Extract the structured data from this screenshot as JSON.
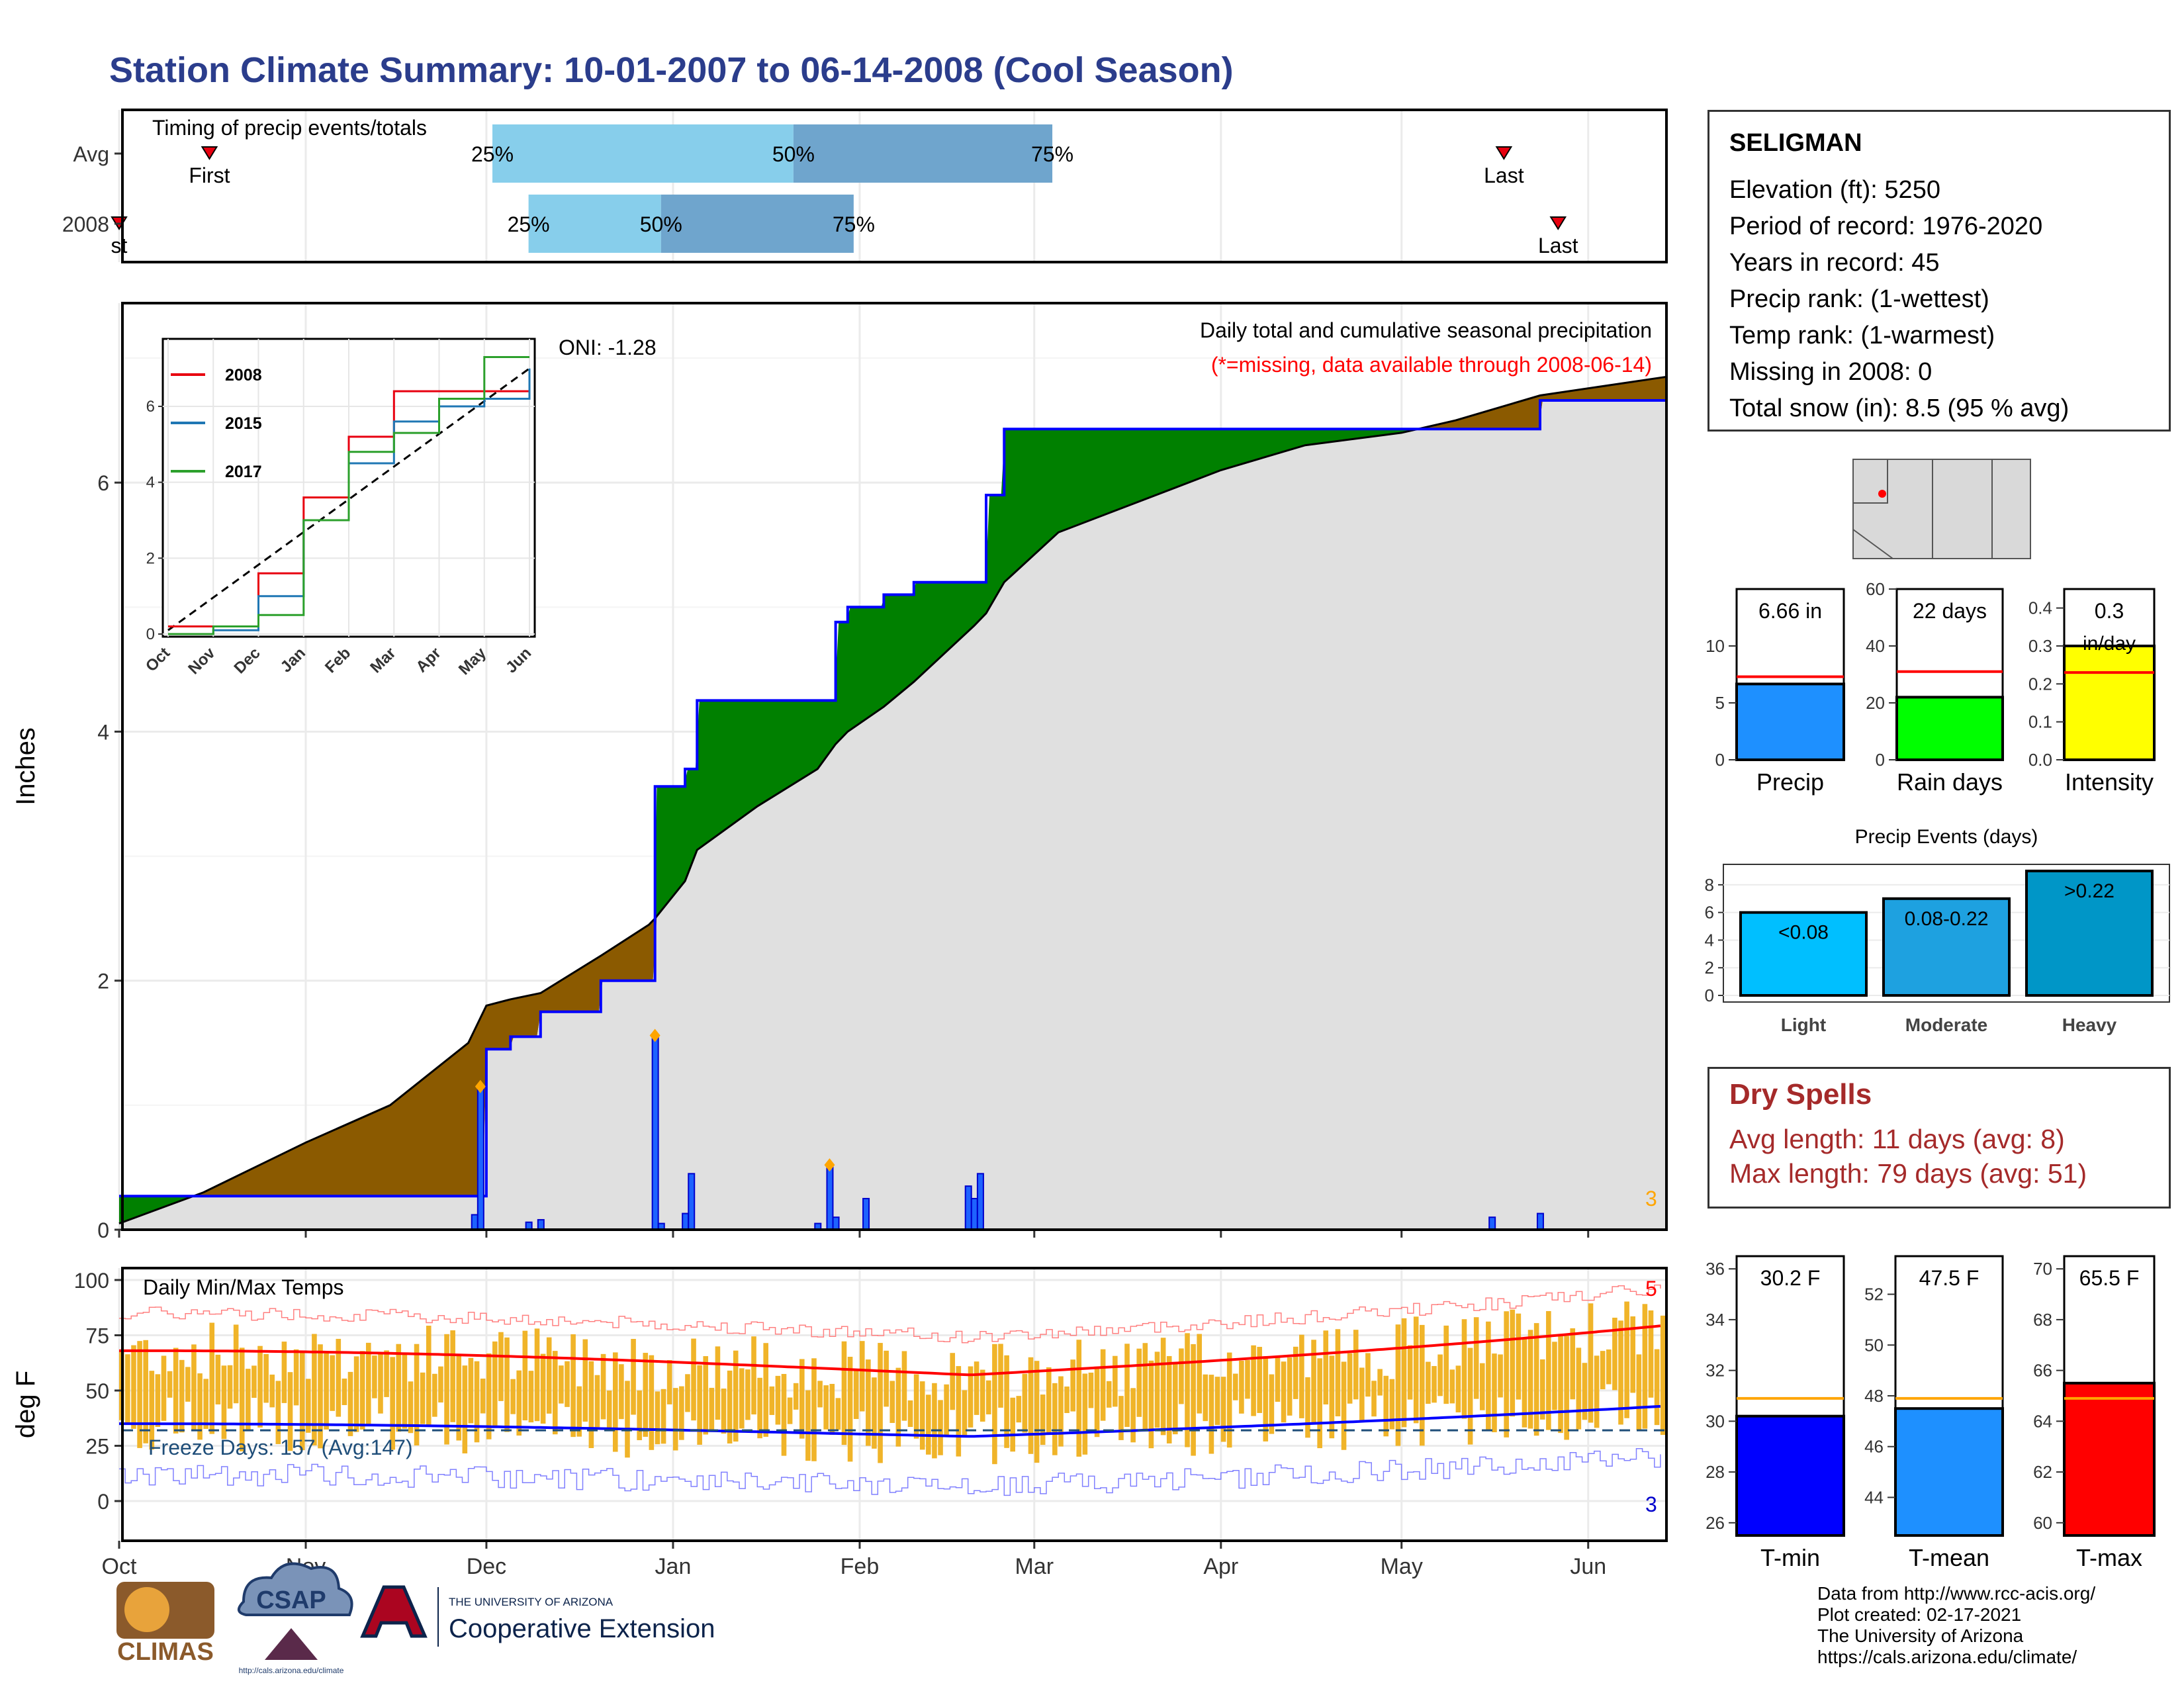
{
  "title": "Station Climate Summary: 10-01-2007 to 06-14-2008 (Cool Season)",
  "timing": {
    "label": "Timing of precip events/totals",
    "rows": [
      "Avg",
      "2008"
    ],
    "first_label": "First",
    "first_label_2008_clipped": "st",
    "last_label": "Last",
    "pct_labels": [
      "25%",
      "50%",
      "75%"
    ],
    "avg_pct_dates": [
      "2007-12-02",
      "2008-01-21",
      "2008-03-04"
    ],
    "y2008_pct_dates": [
      "2007-12-08",
      "2007-12-30",
      "2008-01-31"
    ],
    "avg_first": "2007-10-16",
    "avg_last": "2008-05-18",
    "y2008_first": "2007-10-01",
    "y2008_last": "2008-05-27",
    "colors": {
      "light": "#87ceeb",
      "dark": "#6fa5cd",
      "marker": "#e8000f"
    }
  },
  "main_chart": {
    "ylabel": "Inches",
    "annotation_title": "Daily total and cumulative seasonal precipitation",
    "annotation_missing": "(*=missing, data available through 2008-06-14)",
    "oni": "ONI: -1.28",
    "corner_count": "3",
    "y_ticks": [
      "0",
      "2",
      "4",
      "6"
    ],
    "x_ticks": [
      "Oct",
      "Nov",
      "Dec",
      "Jan",
      "Feb",
      "Mar",
      "Apr",
      "May",
      "Jun"
    ],
    "colors": {
      "above": "#008000",
      "below": "#8b5a00",
      "cum_line": "#0000ff",
      "bg_fill": "#e0e0e0",
      "marker": "#ffa500"
    }
  },
  "inset": {
    "y_ticks": [
      "0",
      "2",
      "4",
      "6"
    ],
    "x_ticks": [
      "Oct",
      "Nov",
      "Dec",
      "Jan",
      "Feb",
      "Mar",
      "Apr",
      "May",
      "Jun"
    ],
    "legend": [
      {
        "name": "2008",
        "color": "#e8000f"
      },
      {
        "name": "2015",
        "color": "#1f77b4"
      },
      {
        "name": "2017",
        "color": "#2ca02c"
      }
    ]
  },
  "temp_chart": {
    "ylabel": "deg F",
    "label": "Daily Min/Max Temps",
    "freeze_text": "Freeze Days: 157 (Avg:147)",
    "count_top": "5",
    "count_bottom": "3",
    "y_ticks": [
      "0",
      "25",
      "50",
      "75",
      "100"
    ],
    "x_ticks": [
      "Oct",
      "Nov",
      "Dec",
      "Jan",
      "Feb",
      "Mar",
      "Apr",
      "May",
      "Jun"
    ],
    "colors": {
      "bars": "#f0b429",
      "max_avg": "#ff0000",
      "min_avg": "#0000ff",
      "freeze_line": "#1f4e79"
    }
  },
  "station": {
    "name": "SELIGMAN",
    "lines": [
      "Elevation (ft): 5250",
      "Period of record: 1976-2020",
      "Years in record: 45",
      "Precip rank:  (1-wettest)",
      "Temp rank:  (1-warmest)",
      "Missing in 2008: 0",
      "Total snow (in): 8.5 (95 % avg)"
    ]
  },
  "dry_spells": {
    "title": "Dry Spells",
    "avg_length": "Avg length: 11 days (avg: 8)",
    "max_length": "Max length: 79 days (avg: 51)"
  },
  "credits": [
    "Data from http://www.rcc-acis.org/",
    "Plot created: 02-17-2021",
    "The University of Arizona",
    "https://cals.arizona.edu/climate/"
  ],
  "logos": {
    "climas": "CLIMAS",
    "csap": "CSAP",
    "csap_url": "http://cals.arizona.edu/climate",
    "ua_small": "THE UNIVERSITY OF ARIZONA",
    "ua_big": "Cooperative Extension"
  },
  "chart_data": [
    {
      "type": "area",
      "name": "cumulative_precip_2008",
      "x": [
        "10-01",
        "10-15",
        "11-01",
        "11-15",
        "11-28",
        "11-29",
        "12-01",
        "12-05",
        "12-10",
        "12-20",
        "12-28",
        "12-29",
        "01-03",
        "01-05",
        "01-15",
        "01-25",
        "01-28",
        "01-30",
        "02-05",
        "02-10",
        "02-20",
        "02-22",
        "02-25",
        "03-05",
        "04-01",
        "04-15",
        "05-01",
        "05-10",
        "05-24",
        "06-14"
      ],
      "cumulative_2008": [
        0.27,
        0.27,
        0.27,
        0.27,
        0.27,
        0.27,
        1.45,
        1.55,
        1.75,
        2.0,
        2.0,
        3.56,
        3.7,
        4.25,
        4.25,
        4.25,
        4.88,
        5.0,
        5.1,
        5.2,
        5.2,
        5.9,
        6.43,
        6.43,
        6.43,
        6.43,
        6.43,
        6.43,
        6.66,
        6.66
      ],
      "cumulative_avg": [
        0.05,
        0.3,
        0.7,
        1.0,
        1.5,
        1.6,
        1.8,
        1.85,
        1.9,
        2.2,
        2.45,
        2.5,
        2.8,
        3.05,
        3.4,
        3.7,
        3.9,
        4.0,
        4.2,
        4.4,
        4.85,
        4.95,
        5.2,
        5.6,
        6.1,
        6.3,
        6.4,
        6.5,
        6.7,
        6.85
      ],
      "daily_events": [
        {
          "date": "11-29",
          "value": 0.12
        },
        {
          "date": "11-30",
          "value": 1.15
        },
        {
          "date": "12-08",
          "value": 0.06
        },
        {
          "date": "12-10",
          "value": 0.08
        },
        {
          "date": "12-29",
          "value": 1.56
        },
        {
          "date": "12-30",
          "value": 0.05
        },
        {
          "date": "01-03",
          "value": 0.13
        },
        {
          "date": "01-04",
          "value": 0.45
        },
        {
          "date": "01-25",
          "value": 0.05
        },
        {
          "date": "01-27",
          "value": 0.52
        },
        {
          "date": "01-28",
          "value": 0.1
        },
        {
          "date": "02-02",
          "value": 0.25
        },
        {
          "date": "02-19",
          "value": 0.35
        },
        {
          "date": "02-20",
          "value": 0.25
        },
        {
          "date": "02-21",
          "value": 0.45
        },
        {
          "date": "05-16",
          "value": 0.1
        },
        {
          "date": "05-24",
          "value": 0.13
        }
      ],
      "ylabel": "Inches",
      "ylim": [
        0,
        7.4
      ]
    },
    {
      "type": "line",
      "name": "inset_cumulative",
      "x": [
        "Oct",
        "Nov",
        "Dec",
        "Jan",
        "Feb",
        "Mar",
        "Apr",
        "May",
        "Jun"
      ],
      "series": [
        {
          "name": "2008",
          "values": [
            0.2,
            0.2,
            1.6,
            3.6,
            5.2,
            6.4,
            6.4,
            6.4,
            6.7
          ]
        },
        {
          "name": "2015",
          "values": [
            0.0,
            0.1,
            1.0,
            3.0,
            4.5,
            5.6,
            6.0,
            6.2,
            7.0
          ]
        },
        {
          "name": "2017",
          "values": [
            0.0,
            0.2,
            0.5,
            3.0,
            4.8,
            5.3,
            6.2,
            7.3,
            7.3
          ]
        }
      ],
      "ylim": [
        0,
        7.5
      ]
    },
    {
      "type": "bar",
      "name": "precip_total",
      "categories": [
        "Precip"
      ],
      "values": [
        6.66
      ],
      "avg": 7.3,
      "label": "6.66 in",
      "ylim": [
        0,
        15
      ],
      "y_ticks": [
        "0",
        "5",
        "10"
      ],
      "color": "#1e90ff"
    },
    {
      "type": "bar",
      "name": "rain_days",
      "categories": [
        "Rain days"
      ],
      "values": [
        22
      ],
      "avg": 31,
      "label": "22 days",
      "ylim": [
        0,
        60
      ],
      "y_ticks": [
        "0",
        "20",
        "40",
        "60"
      ],
      "color": "#00ff00"
    },
    {
      "type": "bar",
      "name": "intensity",
      "categories": [
        "Intensity"
      ],
      "values": [
        0.3
      ],
      "avg": 0.23,
      "label": "0.3",
      "label_unit": "in/day",
      "ylim": [
        0,
        0.45
      ],
      "y_ticks": [
        "0.0",
        "0.1",
        "0.2",
        "0.3",
        "0.4"
      ],
      "color": "#ffff00"
    },
    {
      "type": "bar",
      "name": "precip_events",
      "title": "Precip Events (days)",
      "categories": [
        "Light",
        "Moderate",
        "Heavy"
      ],
      "values": [
        6,
        7,
        9
      ],
      "bar_labels": [
        "<0.08",
        "0.08-0.22",
        ">0.22"
      ],
      "colors": [
        "#00bfff",
        "#1ea1e0",
        "#0096c7"
      ],
      "ylim": [
        0,
        9
      ],
      "y_ticks": [
        "0",
        "2",
        "4",
        "6",
        "8"
      ]
    },
    {
      "type": "bar",
      "name": "t_min",
      "categories": [
        "T-min"
      ],
      "values": [
        30.2
      ],
      "avg": 30.9,
      "label": "30.2 F",
      "ylim": [
        25.5,
        36.5
      ],
      "y_ticks": [
        "26",
        "28",
        "30",
        "32",
        "34",
        "36"
      ],
      "color": "#0000ff"
    },
    {
      "type": "bar",
      "name": "t_mean",
      "categories": [
        "T-mean"
      ],
      "values": [
        47.5
      ],
      "avg": 47.9,
      "label": "47.5 F",
      "ylim": [
        42.5,
        53.5
      ],
      "y_ticks": [
        "44",
        "46",
        "48",
        "50",
        "52"
      ],
      "color": "#1e90ff"
    },
    {
      "type": "bar",
      "name": "t_max",
      "categories": [
        "T-max"
      ],
      "values": [
        65.5
      ],
      "avg": 64.9,
      "label": "65.5 F",
      "ylim": [
        59.5,
        70.5
      ],
      "y_ticks": [
        "60",
        "62",
        "64",
        "66",
        "68",
        "70"
      ],
      "color": "#ff0000"
    }
  ]
}
